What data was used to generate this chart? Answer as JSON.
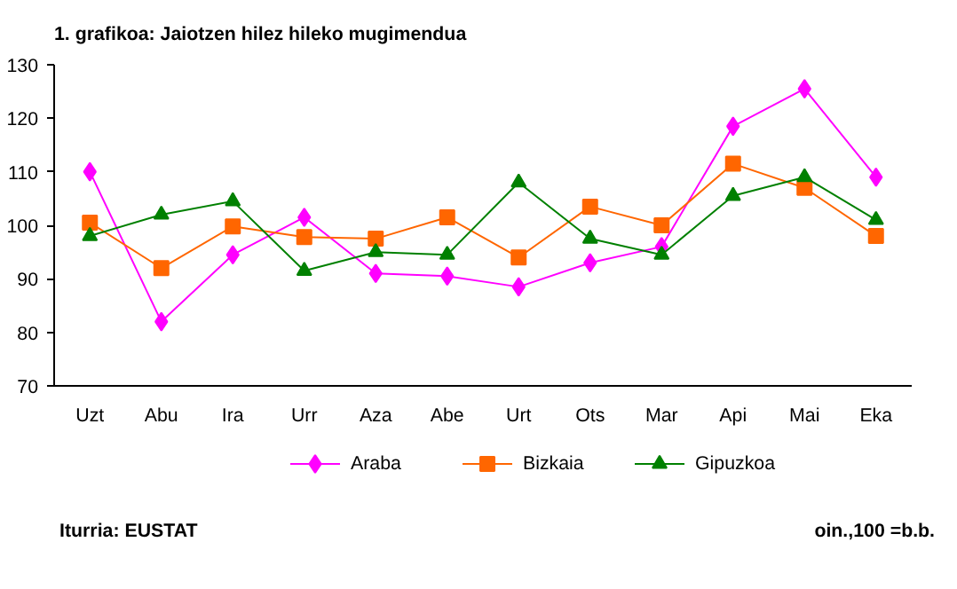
{
  "chart_data": {
    "type": "line",
    "title": "1. grafikoa: Jaiotzen hilez hileko mugimendua",
    "categories": [
      "Uzt",
      "Abu",
      "Ira",
      "Urr",
      "Aza",
      "Abe",
      "Urt",
      "Ots",
      "Mar",
      "Api",
      "Mai",
      "Eka"
    ],
    "series": [
      {
        "name": "Araba",
        "color": "#ff00ff",
        "marker": "diamond",
        "values": [
          110,
          82,
          94.5,
          101.5,
          91,
          90.5,
          88.5,
          93,
          96,
          118.5,
          125.5,
          109
        ]
      },
      {
        "name": "Bizkaia",
        "color": "#ff6600",
        "marker": "square",
        "values": [
          100.5,
          92,
          99.8,
          97.8,
          97.5,
          101.5,
          94,
          103.5,
          100,
          111.5,
          107,
          98
        ]
      },
      {
        "name": "Gipuzkoa",
        "color": "#008000",
        "marker": "triangle",
        "values": [
          98,
          102,
          104.5,
          91.5,
          95,
          94.5,
          108,
          97.5,
          94.5,
          105.5,
          109,
          101
        ]
      }
    ],
    "ylim": [
      70,
      130
    ],
    "yticks": [
      70,
      80,
      90,
      100,
      110,
      120,
      130
    ],
    "grid": false,
    "legend": "bottom",
    "line_style": "solid",
    "annotations": [
      "Iturria: EUSTAT",
      "oin.,100 =b.b."
    ]
  }
}
